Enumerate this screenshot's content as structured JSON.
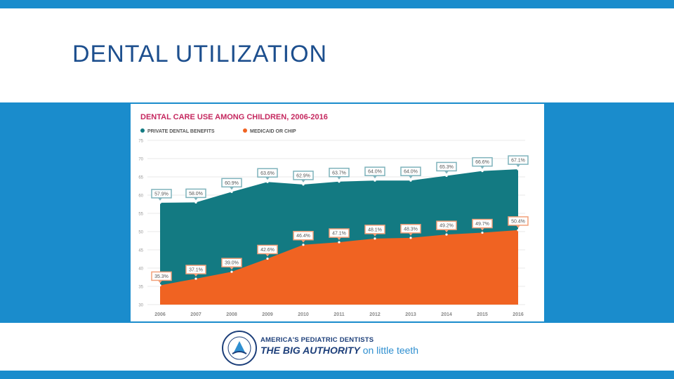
{
  "slide": {
    "title": "DENTAL UTILIZATION"
  },
  "chart_data": {
    "type": "area",
    "title": "DENTAL CARE USE AMONG CHILDREN, 2006-2016",
    "x": [
      "2006",
      "2007",
      "2008",
      "2009",
      "2010",
      "2011",
      "2012",
      "2013",
      "2014",
      "2015",
      "2016"
    ],
    "ylim": [
      30,
      75
    ],
    "yticks": [
      30,
      35,
      40,
      45,
      50,
      55,
      60,
      65,
      70,
      75
    ],
    "legend_position": "top-left",
    "series": [
      {
        "name": "PRIVATE DENTAL BENEFITS",
        "color": "#137a82",
        "values": [
          57.9,
          58.0,
          60.9,
          63.6,
          62.9,
          63.7,
          64.0,
          64.0,
          65.3,
          66.6,
          67.1
        ],
        "labels": [
          "57.9%",
          "58.0%",
          "60.9%",
          "63.6%",
          "62.9%",
          "63.7%",
          "64.0%",
          "64.0%",
          "65.3%",
          "66.6%",
          "67.1%"
        ]
      },
      {
        "name": "MEDICAID OR CHIP",
        "color": "#f06322",
        "values": [
          35.3,
          37.1,
          39.0,
          42.6,
          46.4,
          47.1,
          48.1,
          48.3,
          49.2,
          49.7,
          50.4
        ],
        "labels": [
          "35.3%",
          "37.1%",
          "39.0%",
          "42.6%",
          "46.4%",
          "47.1%",
          "48.1%",
          "48.3%",
          "49.2%",
          "49.7%",
          "50.4%"
        ]
      }
    ],
    "colors": {
      "title": "#c5285f",
      "label_border_private": "#7fb3bc",
      "label_border_medicaid": "#f2a07a"
    }
  },
  "footer": {
    "org_line": "AMERICA'S PEDIATRIC DENTISTS",
    "tagline_bold": "THE BIG AUTHORITY",
    "tagline_light": " on little teeth"
  }
}
